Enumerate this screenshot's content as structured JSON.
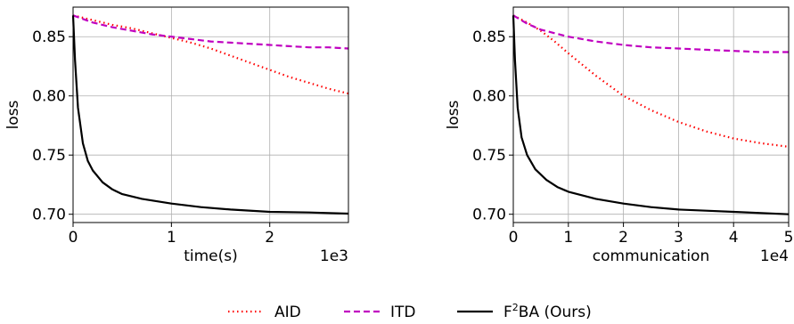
{
  "chart_data": [
    {
      "type": "line",
      "xlabel": "time(s)",
      "ylabel": "loss",
      "x_offset_label": "1e3",
      "xlim": [
        0,
        2.8
      ],
      "ylim": [
        0.693,
        0.875
      ],
      "xticks": [
        0,
        1,
        2
      ],
      "xtick_labels": [
        "0",
        "1",
        "2"
      ],
      "yticks": [
        0.7,
        0.75,
        0.8,
        0.85
      ],
      "ytick_labels": [
        "0.70",
        "0.75",
        "0.80",
        "0.85"
      ],
      "grid": true,
      "series": [
        {
          "name": "AID",
          "color": "#ff0000",
          "style": "dotted",
          "x": [
            0,
            0.2,
            0.4,
            0.6,
            0.8,
            1.0,
            1.2,
            1.4,
            1.6,
            1.8,
            2.0,
            2.2,
            2.4,
            2.6,
            2.8
          ],
          "y": [
            0.868,
            0.864,
            0.86,
            0.857,
            0.853,
            0.849,
            0.845,
            0.84,
            0.834,
            0.828,
            0.822,
            0.816,
            0.811,
            0.806,
            0.802
          ]
        },
        {
          "name": "ITD",
          "color": "#c000c0",
          "style": "dashed",
          "x": [
            0,
            0.2,
            0.4,
            0.6,
            0.8,
            1.0,
            1.2,
            1.4,
            1.6,
            1.8,
            2.0,
            2.2,
            2.4,
            2.6,
            2.8
          ],
          "y": [
            0.868,
            0.862,
            0.858,
            0.855,
            0.852,
            0.85,
            0.848,
            0.846,
            0.845,
            0.844,
            0.843,
            0.842,
            0.841,
            0.841,
            0.84
          ]
        },
        {
          "name": "F²BA (Ours)",
          "color": "#000000",
          "style": "solid",
          "x": [
            0,
            0.02,
            0.05,
            0.1,
            0.15,
            0.2,
            0.3,
            0.4,
            0.5,
            0.7,
            1.0,
            1.3,
            1.6,
            2.0,
            2.4,
            2.8
          ],
          "y": [
            0.868,
            0.83,
            0.79,
            0.76,
            0.745,
            0.737,
            0.727,
            0.721,
            0.717,
            0.713,
            0.709,
            0.706,
            0.704,
            0.702,
            0.7015,
            0.7005
          ]
        }
      ]
    },
    {
      "type": "line",
      "xlabel": "communication",
      "ylabel": "loss",
      "x_offset_label": "1e4",
      "xlim": [
        0,
        5
      ],
      "ylim": [
        0.693,
        0.875
      ],
      "xticks": [
        0,
        1,
        2,
        3,
        4,
        5
      ],
      "xtick_labels": [
        "0",
        "1",
        "2",
        "3",
        "4",
        "5"
      ],
      "yticks": [
        0.7,
        0.75,
        0.8,
        0.85
      ],
      "ytick_labels": [
        "0.70",
        "0.75",
        "0.80",
        "0.85"
      ],
      "grid": true,
      "series": [
        {
          "name": "AID",
          "color": "#ff0000",
          "style": "dotted",
          "x": [
            0,
            0.25,
            0.5,
            0.75,
            1.0,
            1.5,
            2.0,
            2.5,
            3.0,
            3.5,
            4.0,
            4.5,
            5.0
          ],
          "y": [
            0.868,
            0.862,
            0.855,
            0.846,
            0.836,
            0.817,
            0.8,
            0.788,
            0.778,
            0.77,
            0.764,
            0.76,
            0.757
          ]
        },
        {
          "name": "ITD",
          "color": "#c000c0",
          "style": "dashed",
          "x": [
            0,
            0.25,
            0.5,
            0.75,
            1.0,
            1.5,
            2.0,
            2.5,
            3.0,
            3.5,
            4.0,
            4.5,
            5.0
          ],
          "y": [
            0.868,
            0.861,
            0.856,
            0.853,
            0.85,
            0.846,
            0.843,
            0.841,
            0.84,
            0.839,
            0.838,
            0.837,
            0.837
          ]
        },
        {
          "name": "F²BA (Ours)",
          "color": "#000000",
          "style": "solid",
          "x": [
            0,
            0.03,
            0.08,
            0.15,
            0.25,
            0.4,
            0.6,
            0.8,
            1.0,
            1.5,
            2.0,
            2.5,
            3.0,
            3.5,
            4.0,
            5.0
          ],
          "y": [
            0.868,
            0.83,
            0.79,
            0.765,
            0.75,
            0.738,
            0.729,
            0.723,
            0.719,
            0.713,
            0.709,
            0.706,
            0.704,
            0.703,
            0.702,
            0.7
          ]
        }
      ]
    }
  ],
  "legend": {
    "placement": "bottom-center",
    "items": [
      {
        "label": "AID",
        "color": "#ff0000",
        "style": "dotted"
      },
      {
        "label": "ITD",
        "color": "#c000c0",
        "style": "dashed"
      },
      {
        "label_main": "F",
        "label_sup": "2",
        "label_rest": "BA (Ours)",
        "color": "#000000",
        "style": "solid"
      }
    ]
  }
}
